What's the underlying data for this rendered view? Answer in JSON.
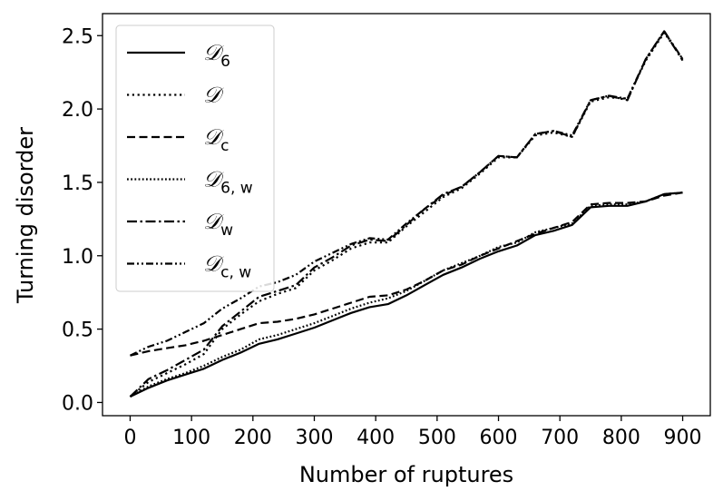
{
  "chart_data": {
    "type": "line",
    "xlabel": "Number of ruptures",
    "ylabel": "Turning disorder",
    "xlim": [
      -45,
      945
    ],
    "ylim": [
      -0.09,
      2.65
    ],
    "xticks": [
      0,
      100,
      200,
      300,
      400,
      500,
      600,
      700,
      800,
      900
    ],
    "yticks": [
      0.0,
      0.5,
      1.0,
      1.5,
      2.0,
      2.5
    ],
    "xtick_labels": [
      "0",
      "100",
      "200",
      "300",
      "400",
      "500",
      "600",
      "700",
      "800",
      "900"
    ],
    "ytick_labels": [
      "0.0",
      "0.5",
      "1.0",
      "1.5",
      "2.0",
      "2.5"
    ],
    "grid": false,
    "legend_position": "upper-left",
    "x": [
      0,
      30,
      60,
      90,
      120,
      150,
      180,
      210,
      240,
      270,
      300,
      330,
      360,
      390,
      420,
      450,
      480,
      510,
      540,
      570,
      600,
      630,
      660,
      690,
      720,
      750,
      780,
      810,
      840,
      870,
      900
    ],
    "series": [
      {
        "name": "𝒟",
        "sub": "6",
        "style": "solid",
        "values": [
          0.04,
          0.1,
          0.15,
          0.19,
          0.23,
          0.29,
          0.34,
          0.4,
          0.43,
          0.47,
          0.51,
          0.56,
          0.61,
          0.65,
          0.67,
          0.73,
          0.8,
          0.87,
          0.92,
          0.98,
          1.03,
          1.07,
          1.14,
          1.17,
          1.21,
          1.33,
          1.34,
          1.34,
          1.37,
          1.42,
          1.43
        ]
      },
      {
        "name": "𝒟",
        "sub": "",
        "style": "dotted",
        "values": [
          0.04,
          0.14,
          0.2,
          0.26,
          0.33,
          0.5,
          0.6,
          0.69,
          0.74,
          0.78,
          0.9,
          0.97,
          1.05,
          1.09,
          1.09,
          1.2,
          1.3,
          1.4,
          1.46,
          1.56,
          1.67,
          1.67,
          1.82,
          1.84,
          1.81,
          2.05,
          2.08,
          2.07,
          2.33,
          2.52,
          2.34
        ]
      },
      {
        "name": "𝒟",
        "sub": "c",
        "style": "dashed",
        "values": [
          0.32,
          0.35,
          0.37,
          0.39,
          0.42,
          0.46,
          0.5,
          0.54,
          0.55,
          0.57,
          0.6,
          0.64,
          0.68,
          0.72,
          0.73,
          0.77,
          0.83,
          0.9,
          0.94,
          1.0,
          1.05,
          1.1,
          1.15,
          1.19,
          1.23,
          1.35,
          1.36,
          1.36,
          1.37,
          1.41,
          1.43
        ]
      },
      {
        "name": "𝒟",
        "sub": "6, w",
        "style": "dotted-dense",
        "values": [
          0.04,
          0.11,
          0.16,
          0.2,
          0.25,
          0.31,
          0.36,
          0.43,
          0.46,
          0.5,
          0.54,
          0.59,
          0.64,
          0.68,
          0.71,
          0.76,
          0.83,
          0.9,
          0.95,
          1.0,
          1.06,
          1.09,
          1.16,
          1.19,
          1.22,
          1.34,
          1.35,
          1.35,
          1.37,
          1.42,
          1.43
        ]
      },
      {
        "name": "𝒟",
        "sub": "w",
        "style": "dashdot",
        "values": [
          0.04,
          0.16,
          0.22,
          0.29,
          0.36,
          0.52,
          0.62,
          0.72,
          0.76,
          0.8,
          0.92,
          0.99,
          1.07,
          1.11,
          1.1,
          1.21,
          1.32,
          1.42,
          1.47,
          1.57,
          1.68,
          1.67,
          1.83,
          1.85,
          1.81,
          2.06,
          2.09,
          2.06,
          2.34,
          2.53,
          2.33
        ]
      },
      {
        "name": "𝒟",
        "sub": "c, w",
        "style": "dashdotdot",
        "values": [
          0.32,
          0.38,
          0.42,
          0.48,
          0.54,
          0.64,
          0.71,
          0.79,
          0.82,
          0.87,
          0.96,
          1.02,
          1.08,
          1.12,
          1.11,
          1.22,
          1.32,
          1.41,
          1.47,
          1.57,
          1.68,
          1.67,
          1.83,
          1.85,
          1.82,
          2.06,
          2.09,
          2.07,
          2.34,
          2.53,
          2.34
        ]
      }
    ]
  }
}
